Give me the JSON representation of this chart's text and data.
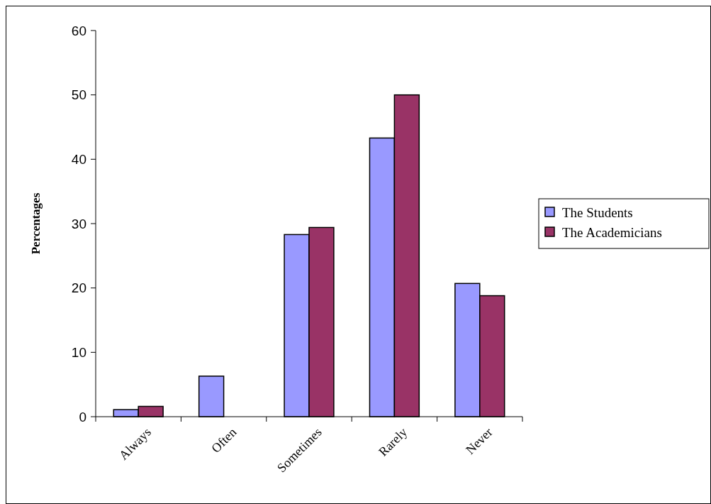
{
  "chart_data": {
    "type": "bar",
    "ylabel": "Percentages",
    "categories": [
      "Always",
      "Often",
      "Sometimes",
      "Rarely",
      "Never"
    ],
    "series": [
      {
        "name": "The Students",
        "color": "#9999ff",
        "values": [
          1.1,
          6.3,
          28.3,
          43.3,
          20.7
        ]
      },
      {
        "name": "The Academicians",
        "color": "#993366",
        "values": [
          1.6,
          0,
          29.4,
          50,
          18.8
        ]
      }
    ],
    "ylim": [
      0,
      60
    ],
    "yticks": [
      0,
      10,
      20,
      30,
      40,
      50,
      60
    ],
    "grid": false,
    "legend": "right"
  }
}
